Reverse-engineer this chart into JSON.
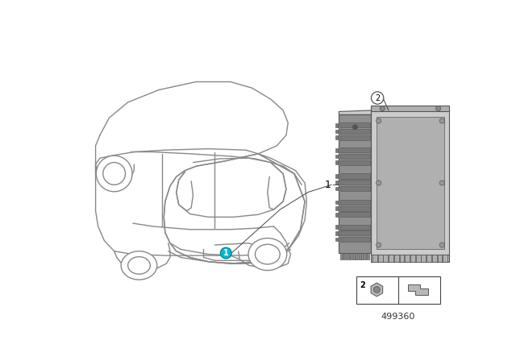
{
  "background_color": "#ffffff",
  "fig_width": 6.4,
  "fig_height": 4.48,
  "dpi": 100,
  "part_number": "499360",
  "callout_color_1": "#00BCD4",
  "line_color": "#555555",
  "car_line_color": "#888888",
  "module_face_color": "#b0b0b0",
  "module_side_color": "#909090",
  "module_dark_color": "#787878",
  "module_light_color": "#cccccc"
}
